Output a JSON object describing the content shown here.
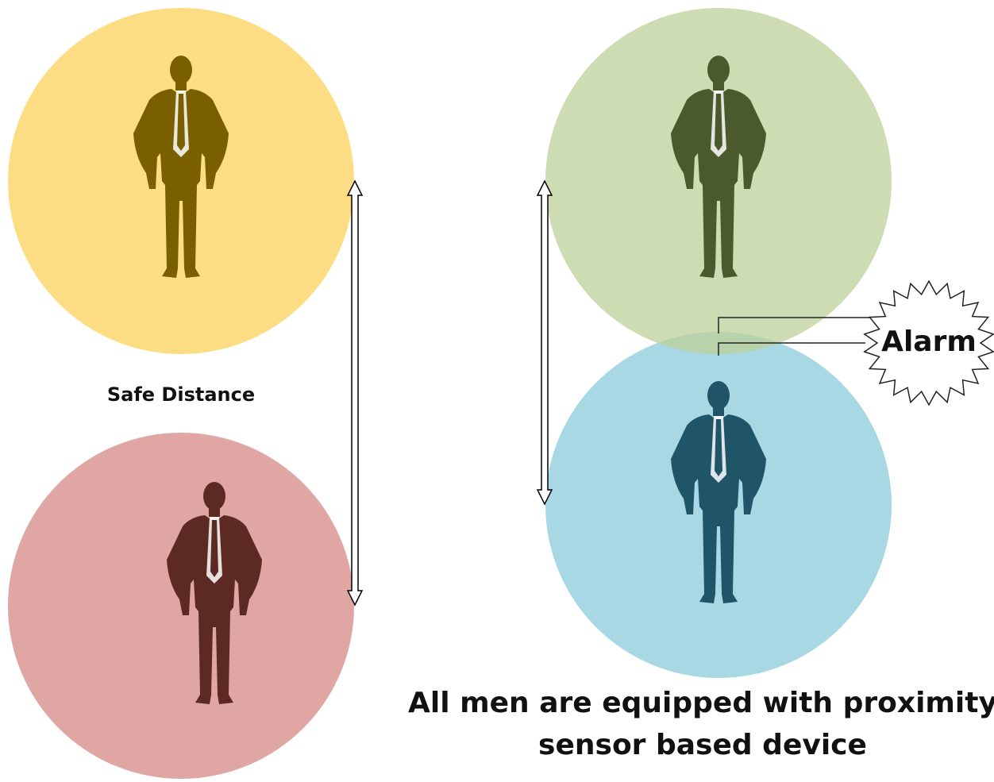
{
  "left": {
    "label": "Safe Distance"
  },
  "right": {
    "alarm": "Alarm",
    "caption": [
      "All men are equipped with proximity",
      "sensor based device"
    ]
  }
}
